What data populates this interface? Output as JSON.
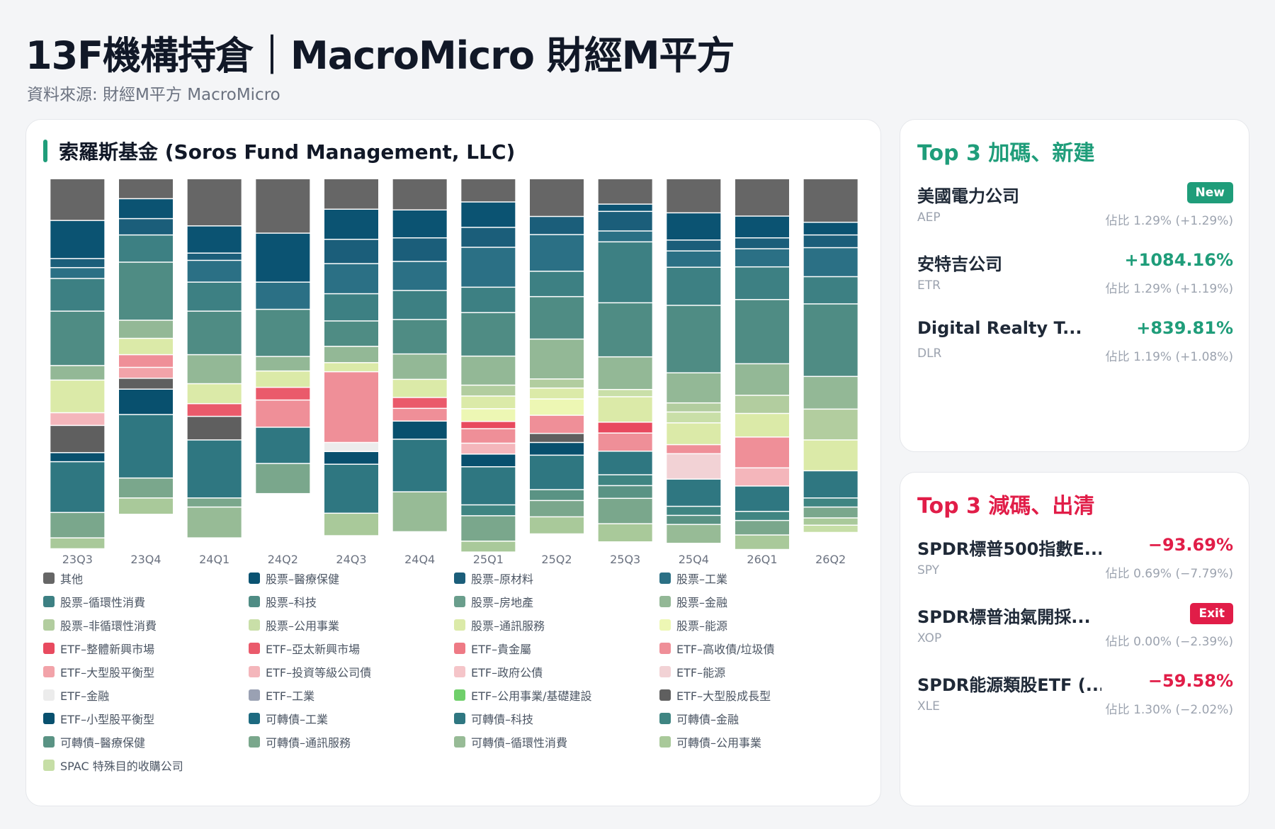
{
  "header": {
    "title": "13F機構持倉｜MacroMicro 財經M平方",
    "subtitle": "資料來源: 財經M平方 MacroMicro"
  },
  "main": {
    "fund_title": "索羅斯基金 (Soros Fund Management, LLC)"
  },
  "chart_data": {
    "type": "bar",
    "stacked": true,
    "normalized": true,
    "title": "",
    "xlabel": "",
    "ylabel": "",
    "ylim": [
      0,
      100
    ],
    "categories": [
      "23Q3",
      "23Q4",
      "24Q1",
      "24Q2",
      "24Q3",
      "24Q4",
      "25Q1",
      "25Q2",
      "25Q3",
      "25Q4",
      "26Q1",
      "26Q2"
    ],
    "legend_position": "bottom",
    "grid": false,
    "series": [
      {
        "name": "其他",
        "color": "#666666",
        "values": [
          11.5,
          5.5,
          13,
          15,
          8.4,
          8.6,
          6.4,
          10.4,
          7,
          9.4,
          10.3,
          12
        ]
      },
      {
        "name": "股票–醫療保健",
        "color": "#0b5372",
        "values": [
          10.5,
          5.5,
          7.5,
          13.5,
          8.3,
          7.7,
          7,
          0,
          2,
          7.5,
          6,
          3.5
        ]
      },
      {
        "name": "股票–原材料",
        "color": "#1b5e7a",
        "values": [
          2.5,
          4.5,
          2,
          0,
          6.7,
          6.5,
          5.5,
          5,
          5.4,
          3,
          3,
          3.5
        ]
      },
      {
        "name": "股票–工業",
        "color": "#2b7085",
        "values": [
          3,
          0,
          6,
          7.5,
          8.3,
          8,
          11,
          10.1,
          3,
          4.5,
          5,
          8
        ]
      },
      {
        "name": "股票–循環性消費",
        "color": "#3d8083",
        "values": [
          9,
          7.5,
          8,
          0,
          7.5,
          8,
          7,
          7,
          16.8,
          10.5,
          9,
          7.5
        ]
      },
      {
        "name": "股票–科技",
        "color": "#4f8c84",
        "values": [
          15,
          16,
          12,
          13,
          7,
          9.5,
          12,
          11.7,
          14.9,
          18.6,
          17.7,
          20
        ]
      },
      {
        "name": "股票–房地產",
        "color": "#6a9e8c",
        "values": [
          0,
          0,
          0,
          0,
          0,
          0,
          0,
          0,
          0,
          0,
          0,
          0
        ]
      },
      {
        "name": "股票–金融",
        "color": "#93b896",
        "values": [
          4,
          5,
          8,
          4,
          4.5,
          7,
          8,
          11,
          9,
          8.3,
          8.7,
          9
        ]
      },
      {
        "name": "股票–非循環性消費",
        "color": "#b2cd9f",
        "values": [
          0,
          0,
          0,
          0,
          0,
          0,
          3,
          2.5,
          0,
          2.5,
          5,
          8.5
        ]
      },
      {
        "name": "股票–公用事業",
        "color": "#c9dfa8",
        "values": [
          0,
          0,
          0,
          0,
          0,
          0,
          0,
          0,
          2,
          3,
          0,
          0
        ]
      },
      {
        "name": "股票–通訊服務",
        "color": "#dbeaa8",
        "values": [
          9,
          4.5,
          5.5,
          4.5,
          2.5,
          5,
          3.5,
          3,
          7,
          6,
          6.5,
          8.5
        ]
      },
      {
        "name": "股票–能源",
        "color": "#edf7b4",
        "values": [
          0,
          0,
          0,
          0,
          0,
          0,
          3.5,
          4.5,
          0,
          0,
          0,
          0
        ]
      },
      {
        "name": "ETF–整體新興市場",
        "color": "#e84a5f",
        "values": [
          0,
          0,
          0,
          0,
          0,
          0,
          2,
          0,
          3,
          0,
          0,
          0
        ]
      },
      {
        "name": "ETF–亞太新興市場",
        "color": "#ea5a6b",
        "values": [
          0,
          0,
          3.5,
          3.5,
          0,
          3,
          0,
          0,
          0,
          0,
          0,
          0
        ]
      },
      {
        "name": "ETF–貴金屬",
        "color": "#ee7a85",
        "values": [
          0,
          0,
          0,
          0,
          0,
          0,
          0,
          0,
          0,
          0,
          0,
          0
        ]
      },
      {
        "name": "ETF–高收債/垃圾債",
        "color": "#ef8f98",
        "values": [
          0,
          3.5,
          0,
          7.5,
          19.5,
          3.5,
          4,
          5,
          5,
          2.5,
          8.5,
          0
        ]
      },
      {
        "name": "ETF–大型股平衡型",
        "color": "#f2a3a9",
        "values": [
          0,
          3,
          0,
          0,
          0,
          0,
          0,
          0,
          0,
          0,
          0,
          0
        ]
      },
      {
        "name": "ETF–投資等級公司債",
        "color": "#f4b6bb",
        "values": [
          3.5,
          0,
          0,
          0,
          0,
          0,
          3,
          0,
          0,
          0,
          5,
          0
        ]
      },
      {
        "name": "ETF–政府公債",
        "color": "#f5c5c9",
        "values": [
          0,
          0,
          0,
          0,
          0,
          0,
          0,
          0,
          0,
          0,
          0,
          0
        ]
      },
      {
        "name": "ETF–能源",
        "color": "#f2d2d5",
        "values": [
          0,
          0,
          0,
          0,
          0,
          0,
          0,
          0,
          0,
          7,
          0,
          0
        ]
      },
      {
        "name": "ETF–金融",
        "color": "#ececec",
        "values": [
          0,
          0,
          0,
          0,
          2.5,
          0,
          0,
          0,
          0,
          0,
          0,
          0
        ]
      },
      {
        "name": "ETF–工業",
        "color": "#9aa1b3",
        "values": [
          0,
          0,
          0,
          0,
          0,
          0,
          0,
          0,
          0,
          0,
          0,
          0
        ]
      },
      {
        "name": "ETF–公用事業/基礎建設",
        "color": "#6fcf6a",
        "values": [
          0,
          0,
          0,
          0,
          0,
          0,
          0,
          0,
          0,
          0,
          0,
          0
        ]
      },
      {
        "name": "ETF–大型股成長型",
        "color": "#5f5f5f",
        "values": [
          7.5,
          3,
          6.5,
          0,
          0,
          0,
          0,
          2.5,
          0,
          0,
          0,
          0
        ]
      },
      {
        "name": "ETF–小型股平衡型",
        "color": "#08506e",
        "values": [
          2.5,
          7,
          0,
          0,
          3.5,
          5,
          3.5,
          3.5,
          0,
          0,
          0,
          0
        ]
      },
      {
        "name": "可轉債–工業",
        "color": "#1d6a80",
        "values": [
          0,
          0,
          0,
          0,
          0,
          0,
          0,
          0,
          0,
          0,
          0,
          0
        ]
      },
      {
        "name": "可轉債–科技",
        "color": "#2f7781",
        "values": [
          14,
          17.5,
          16,
          10,
          13.5,
          14.5,
          10.5,
          9.5,
          6.5,
          7.5,
          7,
          7.5
        ]
      },
      {
        "name": "可轉債–金融",
        "color": "#3f8582",
        "values": [
          0,
          0,
          0,
          0,
          0,
          0,
          3,
          0,
          3,
          2.5,
          2.5,
          2.5
        ]
      },
      {
        "name": "可轉債–醫療保健",
        "color": "#5a9384",
        "values": [
          0,
          0,
          0,
          0,
          0,
          0,
          0,
          3,
          3.5,
          2.5,
          0,
          0
        ]
      },
      {
        "name": "可轉債–通訊服務",
        "color": "#7aa78c",
        "values": [
          7,
          5.5,
          2.5,
          8.3,
          0,
          0,
          7,
          4.5,
          7,
          0,
          4,
          3
        ]
      },
      {
        "name": "可轉債–循環性消費",
        "color": "#97bb96",
        "values": [
          0,
          0,
          8.5,
          0,
          0,
          11,
          0,
          0,
          0,
          5.2,
          0,
          0
        ]
      },
      {
        "name": "可轉債–公用事業",
        "color": "#a9c99a",
        "values": [
          3,
          4.5,
          0,
          0,
          6.2,
          0,
          3,
          4.7,
          5,
          0,
          4,
          2
        ]
      },
      {
        "name": "SPAC 特殊目的收購公司",
        "color": "#c6dea6",
        "values": [
          0,
          0,
          0,
          0,
          0,
          0,
          0,
          0,
          0,
          0,
          0,
          2
        ]
      }
    ]
  },
  "top_add": {
    "title": "Top 3 加碼、新建",
    "items": [
      {
        "name": "美國電力公司",
        "ticker": "AEP",
        "badge": "New",
        "change": "",
        "share": "佔比 1.29% (+1.29%)"
      },
      {
        "name": "安特吉公司",
        "ticker": "ETR",
        "badge": "",
        "change": "+1084.16%",
        "share": "佔比 1.29% (+1.19%)"
      },
      {
        "name": "Digital Realty T...",
        "ticker": "DLR",
        "badge": "",
        "change": "+839.81%",
        "share": "佔比 1.19% (+1.08%)"
      }
    ]
  },
  "top_reduce": {
    "title": "Top 3 減碼、出清",
    "items": [
      {
        "name": "SPDR標普500指數E...",
        "ticker": "SPY",
        "badge": "",
        "change": "−93.69%",
        "share": "佔比 0.69% (−7.79%)"
      },
      {
        "name": "SPDR標普油氣開採...",
        "ticker": "XOP",
        "badge": "Exit",
        "change": "",
        "share": "佔比 0.00% (−2.39%)"
      },
      {
        "name": "SPDR能源類股ETF (...",
        "ticker": "XLE",
        "badge": "",
        "change": "−59.58%",
        "share": "佔比 1.30% (−2.02%)"
      }
    ]
  },
  "colors": {
    "accent_up": "#1f9d7a",
    "accent_down": "#e11d48"
  }
}
